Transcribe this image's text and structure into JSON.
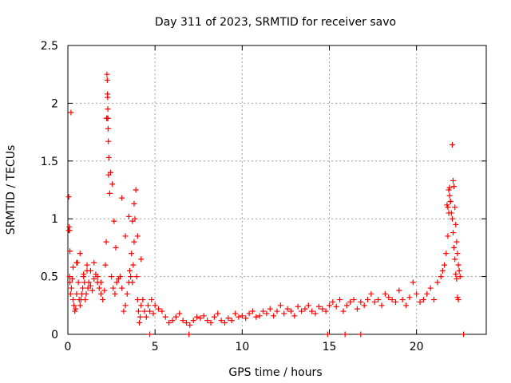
{
  "chart_data": {
    "type": "scatter",
    "title": "Day 311 of 2023, SRMTID for receiver savo",
    "xlabel": "GPS time / hours",
    "ylabel": "SRMTID / TECUs",
    "xlim": [
      0,
      24
    ],
    "ylim": [
      0,
      2.5
    ],
    "xticks": [
      0,
      5,
      10,
      15,
      20
    ],
    "xtick_labels": [
      "0",
      "5",
      "10",
      "15",
      "20"
    ],
    "yticks": [
      0,
      0.5,
      1,
      1.5,
      2,
      2.5
    ],
    "ytick_labels": [
      "0",
      "0.5",
      "1",
      "1.5",
      "2",
      "2.5"
    ],
    "grid": true,
    "marker": "+",
    "series": [
      {
        "name": "SRMTID",
        "color": "#ff0000",
        "x": [
          0.05,
          0.08,
          0.1,
          0.12,
          0.15,
          0.2,
          0.25,
          0.3,
          0.35,
          0.4,
          0.45,
          0.5,
          0.55,
          0.6,
          0.65,
          0.7,
          0.75,
          0.8,
          0.85,
          0.9,
          0.95,
          1.0,
          1.05,
          1.1,
          1.15,
          1.2,
          1.3,
          1.4,
          1.5,
          1.6,
          1.7,
          1.8,
          1.9,
          2.0,
          2.1,
          2.15,
          2.2,
          2.22,
          2.24,
          2.26,
          2.28,
          2.3,
          2.32,
          2.35,
          2.4,
          2.5,
          2.6,
          2.7,
          2.8,
          2.9,
          3.0,
          3.1,
          3.2,
          3.3,
          3.4,
          3.5,
          3.55,
          3.6,
          3.65,
          3.7,
          3.75,
          3.8,
          3.85,
          3.9,
          3.95,
          4.0,
          4.05,
          4.1,
          4.15,
          4.2,
          4.3,
          4.4,
          4.5,
          4.6,
          4.7,
          4.8,
          4.9,
          5.0,
          5.2,
          5.4,
          5.6,
          5.8,
          6.0,
          6.2,
          6.4,
          6.6,
          6.8,
          7.0,
          7.2,
          7.4,
          7.6,
          7.8,
          8.0,
          8.2,
          8.4,
          8.6,
          8.8,
          9.0,
          9.2,
          9.4,
          9.6,
          9.8,
          10.0,
          10.2,
          10.4,
          10.6,
          10.8,
          11.0,
          11.2,
          11.4,
          11.6,
          11.8,
          12.0,
          12.2,
          12.4,
          12.6,
          12.8,
          13.0,
          13.2,
          13.4,
          13.6,
          13.8,
          14.0,
          14.2,
          14.4,
          14.6,
          14.8,
          15.0,
          15.2,
          15.4,
          15.6,
          15.8,
          16.0,
          16.2,
          16.4,
          16.6,
          16.8,
          17.0,
          17.2,
          17.4,
          17.6,
          17.8,
          18.0,
          18.2,
          18.4,
          18.6,
          18.8,
          19.0,
          19.2,
          19.4,
          19.6,
          19.8,
          20.0,
          20.2,
          20.4,
          20.6,
          20.8,
          21.0,
          21.2,
          21.4,
          21.5,
          21.6,
          21.7,
          21.8,
          21.85,
          21.9,
          21.95,
          22.0,
          22.05,
          22.1,
          22.15,
          22.2,
          22.25,
          22.3,
          22.35,
          22.4,
          22.45,
          22.5,
          0.1,
          0.3,
          0.5,
          0.7,
          0.9,
          1.1,
          1.3,
          1.5,
          1.7,
          1.9,
          2.25,
          2.27,
          2.29,
          2.31,
          2.33,
          3.1,
          3.3,
          3.5,
          3.7,
          3.8,
          4.0,
          4.2,
          2.45,
          2.55,
          2.65,
          2.75,
          0.05,
          0.12,
          0.18,
          21.9,
          21.95,
          22.05,
          22.1,
          22.15,
          22.2,
          22.25,
          22.3,
          22.35,
          22.4,
          21.75,
          21.8,
          21.85,
          4.7,
          6.95,
          14.9,
          15.9,
          16.8,
          22.7
        ],
        "y": [
          1.19,
          0.93,
          0.5,
          0.45,
          0.35,
          0.4,
          0.48,
          0.3,
          0.25,
          0.2,
          0.22,
          0.35,
          0.62,
          0.45,
          0.3,
          0.25,
          0.3,
          0.35,
          0.4,
          0.5,
          0.45,
          0.3,
          0.35,
          0.55,
          0.4,
          0.45,
          0.42,
          0.38,
          0.48,
          0.52,
          0.45,
          0.4,
          0.35,
          0.3,
          0.38,
          0.6,
          0.8,
          1.87,
          2.25,
          2.2,
          2.05,
          1.87,
          1.67,
          1.53,
          1.22,
          0.5,
          0.4,
          0.35,
          0.45,
          0.48,
          0.5,
          0.4,
          0.2,
          0.25,
          0.35,
          0.45,
          0.55,
          0.5,
          0.7,
          0.45,
          0.6,
          0.8,
          1.0,
          1.25,
          0.5,
          0.3,
          0.2,
          0.1,
          0.15,
          0.25,
          0.3,
          0.2,
          0.15,
          0.25,
          0.2,
          0.3,
          0.18,
          0.25,
          0.22,
          0.2,
          0.15,
          0.1,
          0.12,
          0.15,
          0.18,
          0.12,
          0.1,
          0.08,
          0.12,
          0.15,
          0.14,
          0.16,
          0.12,
          0.1,
          0.15,
          0.18,
          0.12,
          0.1,
          0.14,
          0.12,
          0.18,
          0.15,
          0.16,
          0.14,
          0.18,
          0.2,
          0.15,
          0.16,
          0.2,
          0.18,
          0.22,
          0.16,
          0.2,
          0.25,
          0.18,
          0.22,
          0.2,
          0.16,
          0.24,
          0.2,
          0.22,
          0.25,
          0.2,
          0.18,
          0.24,
          0.22,
          0.2,
          0.25,
          0.28,
          0.24,
          0.3,
          0.2,
          0.25,
          0.28,
          0.3,
          0.22,
          0.28,
          0.25,
          0.3,
          0.35,
          0.28,
          0.3,
          0.25,
          0.35,
          0.32,
          0.3,
          0.28,
          0.38,
          0.3,
          0.25,
          0.32,
          0.45,
          0.35,
          0.28,
          0.3,
          0.35,
          0.4,
          0.3,
          0.45,
          0.5,
          0.55,
          0.6,
          0.7,
          0.85,
          1.25,
          1.2,
          1.15,
          1.05,
          1.0,
          1.33,
          1.28,
          1.1,
          0.95,
          0.8,
          0.7,
          0.6,
          0.55,
          0.5,
          0.9,
          0.58,
          0.62,
          0.7,
          0.52,
          0.6,
          0.55,
          0.62,
          0.5,
          0.45,
          1.87,
          2.08,
          1.95,
          1.78,
          1.38,
          1.18,
          0.85,
          1.02,
          0.98,
          1.13,
          0.85,
          0.65,
          1.4,
          1.3,
          0.98,
          0.75,
          0.9,
          0.72,
          1.92,
          1.27,
          1.15,
          1.64,
          0.88,
          0.75,
          0.65,
          0.52,
          0.48,
          0.32,
          0.3,
          1.12,
          1.1,
          1.05,
          0.0,
          0.0,
          0.0,
          0.0,
          0.0,
          0.0
        ]
      }
    ]
  }
}
